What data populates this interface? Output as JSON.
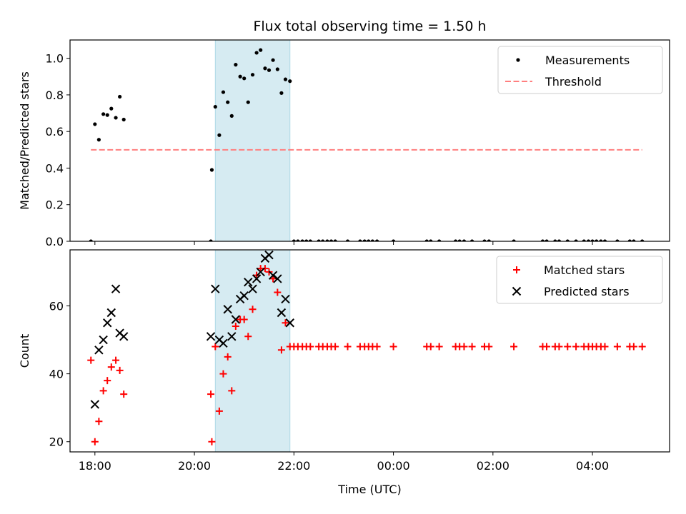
{
  "chart_data": [
    {
      "type": "scatter",
      "title": "Flux total observing time = 1.50 h",
      "xlabel": "",
      "ylabel": "Matched/Predicted stars",
      "x_unit": "hours since 00:00 UTC of first night",
      "xlim": [
        17.5,
        29.55
      ],
      "ylim": [
        0,
        1.1
      ],
      "yticks": [
        "0.0",
        "0.2",
        "0.4",
        "0.6",
        "0.8",
        "1.0"
      ],
      "grid": false,
      "legend_position": "top-right",
      "shaded_span": {
        "x": [
          20.42,
          21.92
        ],
        "color": "#add8e6"
      },
      "series": [
        {
          "name": "Measurements",
          "kind": "points",
          "color": "#000000",
          "points": [
            [
              17.92,
              0.0
            ],
            [
              18.0,
              0.64
            ],
            [
              18.08,
              0.555
            ],
            [
              18.17,
              0.695
            ],
            [
              18.25,
              0.69
            ],
            [
              18.33,
              0.725
            ],
            [
              18.42,
              0.675
            ],
            [
              18.5,
              0.79
            ],
            [
              18.58,
              0.665
            ],
            [
              20.33,
              0.0
            ],
            [
              20.35,
              0.39
            ],
            [
              20.42,
              0.735
            ],
            [
              20.5,
              0.58
            ],
            [
              20.58,
              0.815
            ],
            [
              20.67,
              0.76
            ],
            [
              20.75,
              0.685
            ],
            [
              20.83,
              0.965
            ],
            [
              20.92,
              0.9
            ],
            [
              21.0,
              0.89
            ],
            [
              21.08,
              0.76
            ],
            [
              21.17,
              0.91
            ],
            [
              21.25,
              1.03
            ],
            [
              21.33,
              1.045
            ],
            [
              21.42,
              0.945
            ],
            [
              21.5,
              0.935
            ],
            [
              21.58,
              0.99
            ],
            [
              21.67,
              0.94
            ],
            [
              21.75,
              0.81
            ],
            [
              21.83,
              0.885
            ],
            [
              21.92,
              0.875
            ],
            [
              22.0,
              0.0
            ],
            [
              22.08,
              0.0
            ],
            [
              22.17,
              0.0
            ],
            [
              22.25,
              0.0
            ],
            [
              22.33,
              0.0
            ],
            [
              22.5,
              0.0
            ],
            [
              22.58,
              0.0
            ],
            [
              22.67,
              0.0
            ],
            [
              22.75,
              0.0
            ],
            [
              22.83,
              0.0
            ],
            [
              23.08,
              0.0
            ],
            [
              23.33,
              0.0
            ],
            [
              23.42,
              0.0
            ],
            [
              23.5,
              0.0
            ],
            [
              23.58,
              0.0
            ],
            [
              23.67,
              0.0
            ],
            [
              24.0,
              0.0
            ],
            [
              24.67,
              0.0
            ],
            [
              24.75,
              0.0
            ],
            [
              24.92,
              0.0
            ],
            [
              25.25,
              0.0
            ],
            [
              25.33,
              0.0
            ],
            [
              25.42,
              0.0
            ],
            [
              25.58,
              0.0
            ],
            [
              25.83,
              0.0
            ],
            [
              25.92,
              0.0
            ],
            [
              26.42,
              0.0
            ],
            [
              27.0,
              0.0
            ],
            [
              27.08,
              0.0
            ],
            [
              27.25,
              0.0
            ],
            [
              27.33,
              0.0
            ],
            [
              27.5,
              0.0
            ],
            [
              27.67,
              0.0
            ],
            [
              27.83,
              0.0
            ],
            [
              27.92,
              0.0
            ],
            [
              28.0,
              0.0
            ],
            [
              28.08,
              0.0
            ],
            [
              28.17,
              0.0
            ],
            [
              28.25,
              0.0
            ],
            [
              28.5,
              0.0
            ],
            [
              28.75,
              0.0
            ],
            [
              28.83,
              0.0
            ],
            [
              29.0,
              0.0
            ]
          ]
        },
        {
          "name": "Threshold",
          "kind": "dashed-line",
          "color": "#ff7f7f",
          "x": [
            17.92,
            29.0
          ],
          "y": [
            0.5,
            0.5
          ]
        }
      ]
    },
    {
      "type": "scatter",
      "title": "",
      "xlabel": "Time (UTC)",
      "ylabel": "Count",
      "x_unit": "hours since 00:00 UTC of first night",
      "xlim": [
        17.5,
        29.55
      ],
      "ylim": [
        17,
        76.5
      ],
      "yticks": [
        "20",
        "40",
        "60"
      ],
      "xticks": [
        {
          "x": 18,
          "label": "18:00"
        },
        {
          "x": 20,
          "label": "20:00"
        },
        {
          "x": 22,
          "label": "22:00"
        },
        {
          "x": 24,
          "label": "00:00"
        },
        {
          "x": 26,
          "label": "02:00"
        },
        {
          "x": 28,
          "label": "04:00"
        }
      ],
      "grid": false,
      "legend_position": "top-right",
      "shaded_span": {
        "x": [
          20.42,
          21.92
        ],
        "color": "#add8e6"
      },
      "series": [
        {
          "name": "Matched stars",
          "marker": "plus",
          "color": "#ff0000",
          "points": [
            [
              17.92,
              44
            ],
            [
              18.0,
              20
            ],
            [
              18.08,
              26
            ],
            [
              18.17,
              35
            ],
            [
              18.25,
              38
            ],
            [
              18.33,
              42
            ],
            [
              18.42,
              44
            ],
            [
              18.5,
              41
            ],
            [
              18.58,
              34
            ],
            [
              20.33,
              34
            ],
            [
              20.35,
              20
            ],
            [
              20.42,
              48
            ],
            [
              20.5,
              29
            ],
            [
              20.58,
              40
            ],
            [
              20.67,
              45
            ],
            [
              20.75,
              35
            ],
            [
              20.83,
              54
            ],
            [
              20.92,
              56
            ],
            [
              21.0,
              56
            ],
            [
              21.08,
              51
            ],
            [
              21.17,
              59
            ],
            [
              21.25,
              69
            ],
            [
              21.33,
              71
            ],
            [
              21.42,
              71
            ],
            [
              21.5,
              70
            ],
            [
              21.58,
              68
            ],
            [
              21.67,
              64
            ],
            [
              21.75,
              47
            ],
            [
              21.83,
              55
            ],
            [
              21.92,
              48
            ],
            [
              22.0,
              48
            ],
            [
              22.08,
              48
            ],
            [
              22.17,
              48
            ],
            [
              22.25,
              48
            ],
            [
              22.33,
              48
            ],
            [
              22.5,
              48
            ],
            [
              22.58,
              48
            ],
            [
              22.67,
              48
            ],
            [
              22.75,
              48
            ],
            [
              22.83,
              48
            ],
            [
              23.08,
              48
            ],
            [
              23.33,
              48
            ],
            [
              23.42,
              48
            ],
            [
              23.5,
              48
            ],
            [
              23.58,
              48
            ],
            [
              23.67,
              48
            ],
            [
              24.0,
              48
            ],
            [
              24.67,
              48
            ],
            [
              24.75,
              48
            ],
            [
              24.92,
              48
            ],
            [
              25.25,
              48
            ],
            [
              25.33,
              48
            ],
            [
              25.42,
              48
            ],
            [
              25.58,
              48
            ],
            [
              25.83,
              48
            ],
            [
              25.92,
              48
            ],
            [
              26.42,
              48
            ],
            [
              27.0,
              48
            ],
            [
              27.08,
              48
            ],
            [
              27.25,
              48
            ],
            [
              27.33,
              48
            ],
            [
              27.5,
              48
            ],
            [
              27.67,
              48
            ],
            [
              27.83,
              48
            ],
            [
              27.92,
              48
            ],
            [
              28.0,
              48
            ],
            [
              28.08,
              48
            ],
            [
              28.17,
              48
            ],
            [
              28.25,
              48
            ],
            [
              28.5,
              48
            ],
            [
              28.75,
              48
            ],
            [
              28.83,
              48
            ],
            [
              29.0,
              48
            ]
          ]
        },
        {
          "name": "Predicted stars",
          "marker": "x",
          "color": "#000000",
          "points": [
            [
              18.0,
              31
            ],
            [
              18.08,
              47
            ],
            [
              18.17,
              50
            ],
            [
              18.25,
              55
            ],
            [
              18.33,
              58
            ],
            [
              18.42,
              65
            ],
            [
              18.5,
              52
            ],
            [
              18.58,
              51
            ],
            [
              20.33,
              51
            ],
            [
              20.42,
              65
            ],
            [
              20.5,
              50
            ],
            [
              20.58,
              49
            ],
            [
              20.67,
              59
            ],
            [
              20.75,
              51
            ],
            [
              20.83,
              56
            ],
            [
              20.92,
              62
            ],
            [
              21.0,
              63
            ],
            [
              21.08,
              67
            ],
            [
              21.17,
              65
            ],
            [
              21.25,
              68
            ],
            [
              21.33,
              70
            ],
            [
              21.42,
              74
            ],
            [
              21.5,
              75
            ],
            [
              21.58,
              69
            ],
            [
              21.67,
              68
            ],
            [
              21.75,
              58
            ],
            [
              21.83,
              62
            ],
            [
              21.92,
              55
            ]
          ]
        }
      ]
    }
  ]
}
